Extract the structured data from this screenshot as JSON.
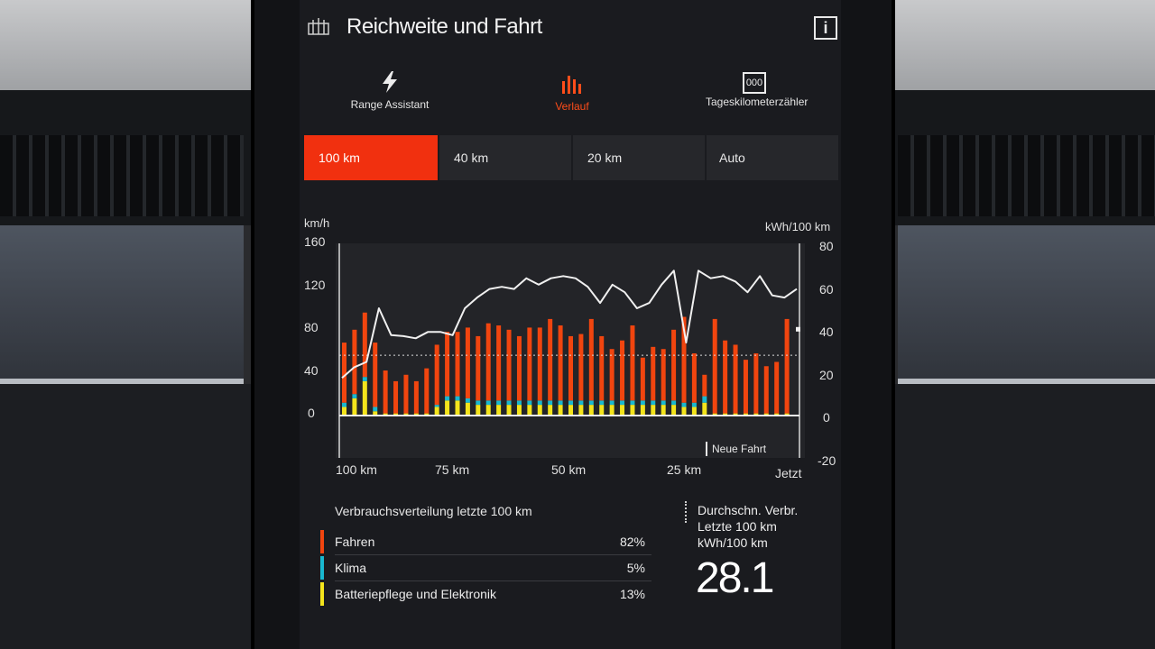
{
  "header": {
    "title": "Reichweite und Fahrt",
    "info_label": "i"
  },
  "nav": [
    {
      "label": "Range Assistant",
      "icon": "lightning-icon"
    },
    {
      "label": "Verlauf",
      "icon": "bar-history-icon"
    },
    {
      "label": "Tageskilometerzähler",
      "icon": "odometer-icon",
      "icon_text": "000"
    }
  ],
  "range_tabs": [
    {
      "label": "100 km",
      "active": true
    },
    {
      "label": "40 km",
      "active": false
    },
    {
      "label": "20 km",
      "active": false
    },
    {
      "label": "Auto",
      "active": false
    }
  ],
  "colors": {
    "accent": "#f1300f",
    "driving": "#f1450f",
    "climate": "#19b8d0",
    "battery": "#f4e41c",
    "speed_line": "#f0f0f0"
  },
  "chart_data": {
    "type": "bar",
    "left_axis": {
      "label": "km/h",
      "ticks": [
        "160",
        "120",
        "80",
        "40",
        "0"
      ],
      "ylim": [
        0,
        160
      ]
    },
    "right_axis": {
      "label": "kWh/100 km",
      "ticks": [
        "80",
        "60",
        "40",
        "20",
        "0",
        "-20"
      ],
      "ylim": [
        -20,
        80
      ]
    },
    "x_ticks": [
      "100 km",
      "75 km",
      "50 km",
      "25 km",
      "Jetzt"
    ],
    "annotation": "Neue Fahrt",
    "average_reference_kwh": 28.1,
    "series": [
      {
        "name": "Fahren",
        "values": [
          28,
          30,
          30,
          30,
          20,
          15,
          18,
          15,
          21,
          28,
          30,
          30,
          33,
          30,
          36,
          35,
          33,
          30,
          34,
          34,
          38,
          35,
          30,
          31,
          38,
          30,
          24,
          28,
          35,
          20,
          25,
          24,
          33,
          40,
          23,
          10,
          44,
          34,
          32,
          25,
          28,
          22,
          24,
          44
        ]
      },
      {
        "name": "Klima",
        "values": [
          2,
          2,
          2,
          2,
          0,
          0,
          0,
          0,
          0,
          1,
          2,
          2,
          2,
          2,
          2,
          2,
          2,
          2,
          2,
          2,
          2,
          2,
          2,
          2,
          2,
          2,
          2,
          2,
          2,
          2,
          2,
          2,
          2,
          2,
          2,
          3,
          0,
          0,
          0,
          0,
          0,
          0,
          0,
          0
        ]
      },
      {
        "name": "Batteriepflege und Elektronik",
        "values": [
          4,
          8,
          16,
          2,
          1,
          1,
          1,
          1,
          1,
          4,
          7,
          7,
          6,
          5,
          5,
          5,
          5,
          5,
          5,
          5,
          5,
          5,
          5,
          5,
          5,
          5,
          5,
          5,
          5,
          5,
          5,
          5,
          5,
          4,
          4,
          6,
          1,
          1,
          1,
          1,
          1,
          1,
          1,
          1
        ]
      },
      {
        "name": "Geschwindigkeit",
        "unit": "km/h",
        "values": [
          35,
          45,
          50,
          100,
          75,
          74,
          72,
          78,
          78,
          75,
          100,
          110,
          118,
          120,
          118,
          128,
          122,
          128,
          130,
          128,
          120,
          105,
          122,
          115,
          100,
          105,
          122,
          135,
          68,
          135,
          128,
          130,
          125,
          115,
          130,
          112,
          110,
          118
        ]
      }
    ]
  },
  "distribution": {
    "title": "Verbrauchsverteilung letzte 100 km",
    "rows": [
      {
        "name": "Fahren",
        "percent": "82%"
      },
      {
        "name": "Klima",
        "percent": "5%"
      },
      {
        "name": "Batteriepflege und Elektronik",
        "percent": "13%"
      }
    ]
  },
  "average": {
    "line1": "Durchschn. Verbr.",
    "line2": "Letzte 100 km",
    "line3": "kWh/100 km",
    "value": "28.1"
  }
}
